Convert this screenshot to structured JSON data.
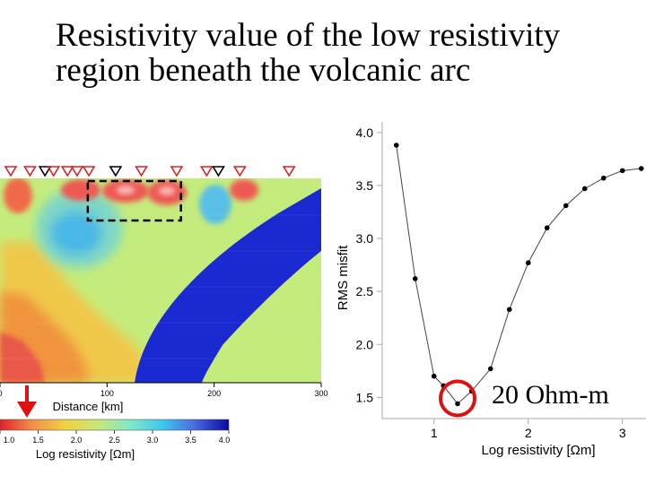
{
  "slide": {
    "title_line1": "Resistivity value of the low resistivity",
    "title_line2": "region beneath the volcanic arc",
    "annotation": "20 Ohm-m"
  },
  "colors": {
    "ocean_slab": "#1a2ad0",
    "conductor": "#f15a5a",
    "highlight_circle": "#e01010",
    "arrow": "#e01010",
    "station_marker": "#e02020",
    "colorbar_stops": [
      "#e0202a",
      "#f0904a",
      "#f0d040",
      "#c8e878",
      "#80e8c8",
      "#40c8f0",
      "#4a6ae0",
      "#0a0aa0"
    ]
  },
  "chart_data": [
    {
      "type": "heatmap",
      "title": "",
      "xlabel": "Distance [km]",
      "ylabel": "",
      "x_ticks": [
        "0",
        "100",
        "200",
        "300"
      ],
      "xlim": [
        0,
        300
      ],
      "colorbar": {
        "label": "Log resistivity [Ωm]",
        "ticks": [
          "1.0",
          "1.5",
          "2.0",
          "2.5",
          "3.0",
          "3.5",
          "4.0"
        ],
        "range": [
          1.0,
          4.0
        ]
      },
      "stations": [
        {
          "x": 10,
          "type": "red"
        },
        {
          "x": 28,
          "type": "red"
        },
        {
          "x": 42,
          "type": "black"
        },
        {
          "x": 50,
          "type": "red"
        },
        {
          "x": 63,
          "type": "red"
        },
        {
          "x": 72,
          "type": "red"
        },
        {
          "x": 83,
          "type": "red"
        },
        {
          "x": 108,
          "type": "black"
        },
        {
          "x": 132,
          "type": "red"
        },
        {
          "x": 165,
          "type": "red"
        },
        {
          "x": 193,
          "type": "red"
        },
        {
          "x": 204,
          "type": "black"
        },
        {
          "x": 224,
          "type": "red"
        },
        {
          "x": 270,
          "type": "red"
        }
      ],
      "highlight_box": {
        "x_range": [
          82,
          169
        ]
      }
    },
    {
      "type": "line",
      "title": "",
      "xlabel": "Log resistivity [Ωm]",
      "ylabel": "RMS misfit",
      "xlim": [
        0.45,
        3.25
      ],
      "ylim": [
        1.3,
        4.1
      ],
      "x_ticks": [
        "1",
        "2",
        "3"
      ],
      "y_ticks": [
        "1.5",
        "2.0",
        "2.5",
        "3.0",
        "3.5",
        "4.0"
      ],
      "series": [
        {
          "x": [
            0.6,
            0.8,
            1.0,
            1.1,
            1.25,
            1.4,
            1.6,
            1.8,
            2.0,
            2.2,
            2.4,
            2.6,
            2.8,
            3.0,
            3.2
          ],
          "y": [
            3.88,
            2.62,
            1.7,
            1.61,
            1.44,
            1.56,
            1.77,
            2.33,
            2.77,
            3.1,
            3.31,
            3.47,
            3.57,
            3.64,
            3.66
          ]
        }
      ],
      "highlight_point_x": 1.25
    }
  ]
}
